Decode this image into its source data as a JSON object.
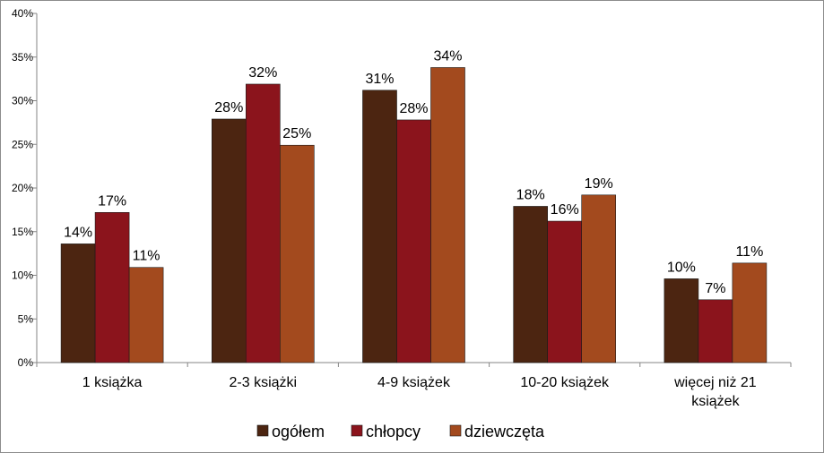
{
  "chart_data": {
    "type": "bar",
    "categories": [
      [
        "1 książka"
      ],
      [
        "2-3 książki"
      ],
      [
        "4-9 książek"
      ],
      [
        "10-20 książek"
      ],
      [
        "więcej niż 21",
        "książek"
      ]
    ],
    "series": [
      {
        "name": "ogółem",
        "color": "#4c2511",
        "values": [
          13.6,
          27.9,
          31.2,
          17.9,
          9.6
        ],
        "labels": [
          "14%",
          "28%",
          "31%",
          "18%",
          "10%"
        ]
      },
      {
        "name": "chłopcy",
        "color": "#8b141c",
        "values": [
          17.2,
          31.9,
          27.8,
          16.2,
          7.2
        ],
        "labels": [
          "17%",
          "32%",
          "28%",
          "16%",
          "7%"
        ]
      },
      {
        "name": "dziewczęta",
        "color": "#a34a1e",
        "values": [
          10.9,
          24.9,
          33.8,
          19.2,
          11.4
        ],
        "labels": [
          "11%",
          "25%",
          "34%",
          "19%",
          "11%"
        ]
      }
    ],
    "ylim": [
      0,
      40
    ],
    "yticks": [
      "0%",
      "5%",
      "10%",
      "15%",
      "20%",
      "25%",
      "30%",
      "35%",
      "40%"
    ],
    "legend_position": "bottom",
    "grid": false
  }
}
